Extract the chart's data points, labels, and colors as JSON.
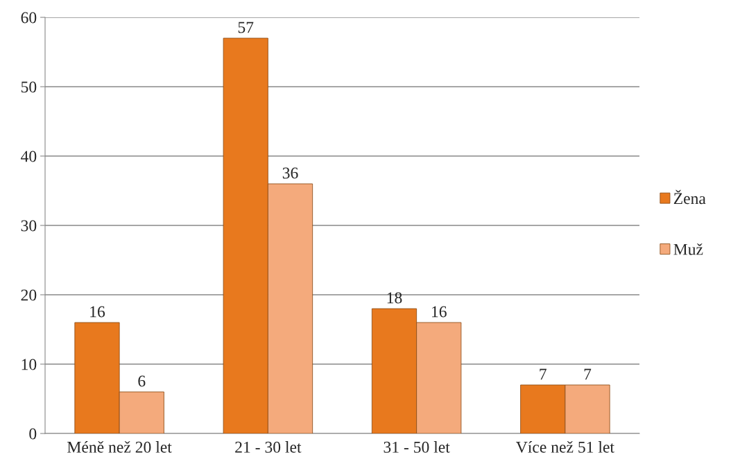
{
  "chart_data": {
    "type": "bar",
    "categories": [
      "Méně než 20 let",
      "21 - 30 let",
      "31 - 50 let",
      "Více než 51 let"
    ],
    "series": [
      {
        "name": "Žena",
        "color": "#e8791e",
        "values": [
          16,
          57,
          18,
          7
        ]
      },
      {
        "name": "Muž",
        "color": "#f4aa7c",
        "values": [
          6,
          36,
          16,
          7
        ]
      }
    ],
    "ylim": [
      0,
      60
    ],
    "yticks": [
      0,
      10,
      20,
      30,
      40,
      50,
      60
    ],
    "grid": "y",
    "legend": "right",
    "data_labels": true
  }
}
